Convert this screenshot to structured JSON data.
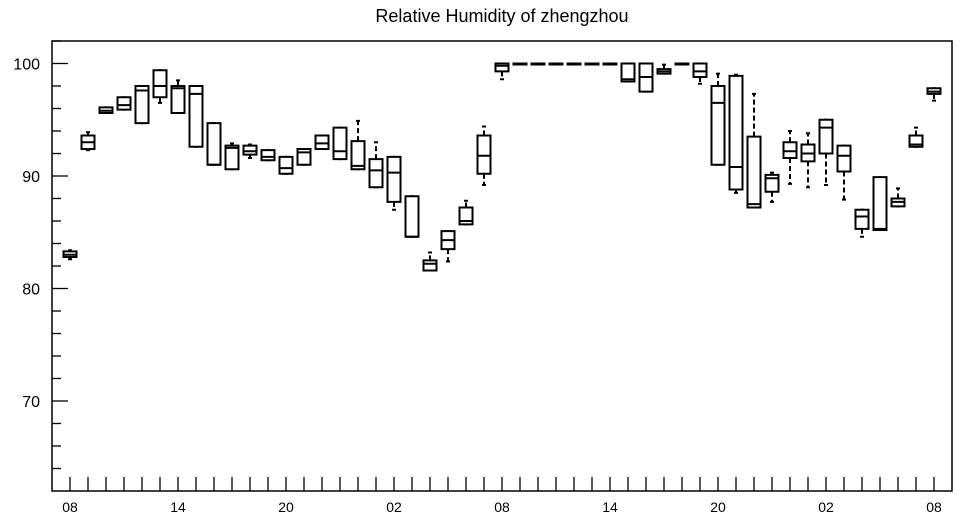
{
  "chart_data": {
    "type": "box",
    "title": "Relative Humidity of zhengzhou",
    "xlabel": "",
    "ylabel": "",
    "ylim": [
      62,
      102
    ],
    "yticks": [
      70,
      80,
      90,
      100
    ],
    "xlim": [
      0,
      50
    ],
    "x_tick_positions": [
      0,
      6,
      12,
      18,
      24,
      30,
      36,
      42,
      48
    ],
    "x_tick_labels": [
      "08",
      "14",
      "20",
      "02",
      "08",
      "14",
      "20",
      "02",
      "08"
    ],
    "grid": false,
    "series": [
      {
        "boxes": [
          {
            "x": 0,
            "q1": 82.8,
            "median": 83.0,
            "q3": 83.3,
            "whislo": 82.6,
            "whishi": 83.4
          },
          {
            "x": 1,
            "q1": 92.4,
            "median": 93.0,
            "q3": 93.6,
            "whislo": 92.3,
            "whishi": 93.9
          },
          {
            "x": 2,
            "q1": 95.6,
            "median": 95.8,
            "q3": 96.1,
            "whislo": 95.6,
            "whishi": 96.1
          },
          {
            "x": 3,
            "q1": 95.9,
            "median": 96.3,
            "q3": 97.0,
            "whislo": 95.9,
            "whishi": 97.0
          },
          {
            "x": 4,
            "q1": 94.7,
            "median": 97.6,
            "q3": 98.0,
            "whislo": 94.7,
            "whishi": 98.0
          },
          {
            "x": 5,
            "q1": 97.0,
            "median": 98.0,
            "q3": 99.4,
            "whislo": 96.5,
            "whishi": 99.4
          },
          {
            "x": 6,
            "q1": 95.6,
            "median": 97.8,
            "q3": 98.0,
            "whislo": 95.6,
            "whishi": 98.5
          },
          {
            "x": 7,
            "q1": 92.6,
            "median": 97.3,
            "q3": 98.0,
            "whislo": 92.6,
            "whishi": 98.0
          },
          {
            "x": 8,
            "q1": 91.0,
            "median": 91.0,
            "q3": 94.7,
            "whislo": 91.0,
            "whishi": 94.7
          },
          {
            "x": 9,
            "q1": 90.6,
            "median": 92.5,
            "q3": 92.7,
            "whislo": 90.6,
            "whishi": 92.9
          },
          {
            "x": 10,
            "q1": 91.9,
            "median": 92.2,
            "q3": 92.7,
            "whislo": 91.6,
            "whishi": 92.8
          },
          {
            "x": 11,
            "q1": 91.4,
            "median": 91.7,
            "q3": 92.3,
            "whislo": 91.4,
            "whishi": 92.3
          },
          {
            "x": 12,
            "q1": 90.2,
            "median": 90.7,
            "q3": 91.7,
            "whislo": 90.2,
            "whishi": 91.7
          },
          {
            "x": 13,
            "q1": 91.0,
            "median": 92.1,
            "q3": 92.4,
            "whislo": 91.0,
            "whishi": 92.4
          },
          {
            "x": 14,
            "q1": 92.4,
            "median": 92.9,
            "q3": 93.6,
            "whislo": 92.4,
            "whishi": 93.6
          },
          {
            "x": 15,
            "q1": 91.5,
            "median": 92.2,
            "q3": 94.3,
            "whislo": 91.5,
            "whishi": 94.3
          },
          {
            "x": 16,
            "q1": 90.6,
            "median": 90.9,
            "q3": 93.1,
            "whislo": 90.6,
            "whishi": 94.9
          },
          {
            "x": 17,
            "q1": 89.0,
            "median": 90.5,
            "q3": 91.5,
            "whislo": 89.0,
            "whishi": 93.0
          },
          {
            "x": 18,
            "q1": 87.7,
            "median": 90.3,
            "q3": 91.7,
            "whislo": 87.0,
            "whishi": 91.7
          },
          {
            "x": 19,
            "q1": 84.6,
            "median": 84.6,
            "q3": 88.2,
            "whislo": 84.6,
            "whishi": 88.2
          },
          {
            "x": 20,
            "q1": 81.6,
            "median": 82.2,
            "q3": 82.5,
            "whislo": 81.6,
            "whishi": 83.2
          },
          {
            "x": 21,
            "q1": 83.5,
            "median": 84.3,
            "q3": 85.1,
            "whislo": 82.4,
            "whishi": 85.1
          },
          {
            "x": 22,
            "q1": 85.7,
            "median": 86.0,
            "q3": 87.2,
            "whislo": 85.7,
            "whishi": 87.8
          },
          {
            "x": 23,
            "q1": 90.2,
            "median": 91.8,
            "q3": 93.6,
            "whislo": 89.2,
            "whishi": 94.4
          },
          {
            "x": 24,
            "q1": 99.3,
            "median": 99.8,
            "q3": 100.0,
            "whislo": 98.6,
            "whishi": 100.0
          },
          {
            "x": 25,
            "q1": 100.0,
            "median": 100.0,
            "q3": 100.0,
            "whislo": 100.0,
            "whishi": 100.0
          },
          {
            "x": 26,
            "q1": 100.0,
            "median": 100.0,
            "q3": 100.0,
            "whislo": 100.0,
            "whishi": 100.0
          },
          {
            "x": 27,
            "q1": 100.0,
            "median": 100.0,
            "q3": 100.0,
            "whislo": 100.0,
            "whishi": 100.0
          },
          {
            "x": 28,
            "q1": 100.0,
            "median": 100.0,
            "q3": 100.0,
            "whislo": 100.0,
            "whishi": 100.0
          },
          {
            "x": 29,
            "q1": 100.0,
            "median": 100.0,
            "q3": 100.0,
            "whislo": 100.0,
            "whishi": 100.0
          },
          {
            "x": 30,
            "q1": 100.0,
            "median": 100.0,
            "q3": 100.0,
            "whislo": 100.0,
            "whishi": 100.0
          },
          {
            "x": 31,
            "q1": 98.4,
            "median": 98.6,
            "q3": 100.0,
            "whislo": 98.4,
            "whishi": 100.0
          },
          {
            "x": 32,
            "q1": 97.5,
            "median": 98.8,
            "q3": 100.0,
            "whislo": 97.5,
            "whishi": 100.0
          },
          {
            "x": 33,
            "q1": 99.1,
            "median": 99.3,
            "q3": 99.5,
            "whislo": 99.1,
            "whishi": 99.9
          },
          {
            "x": 34,
            "q1": 100.0,
            "median": 100.0,
            "q3": 100.0,
            "whislo": 100.0,
            "whishi": 100.0
          },
          {
            "x": 35,
            "q1": 98.8,
            "median": 99.3,
            "q3": 100.0,
            "whislo": 98.2,
            "whishi": 100.0
          },
          {
            "x": 36,
            "q1": 91.0,
            "median": 96.5,
            "q3": 98.0,
            "whislo": 91.0,
            "whishi": 99.1
          },
          {
            "x": 37,
            "q1": 88.8,
            "median": 90.8,
            "q3": 98.9,
            "whislo": 88.5,
            "whishi": 99.0
          },
          {
            "x": 38,
            "q1": 87.2,
            "median": 87.5,
            "q3": 93.5,
            "whislo": 87.2,
            "whishi": 97.3
          },
          {
            "x": 39,
            "q1": 88.6,
            "median": 89.8,
            "q3": 90.1,
            "whislo": 87.7,
            "whishi": 90.3
          },
          {
            "x": 40,
            "q1": 91.6,
            "median": 92.2,
            "q3": 93.0,
            "whislo": 89.3,
            "whishi": 94.0
          },
          {
            "x": 41,
            "q1": 91.3,
            "median": 92.0,
            "q3": 92.8,
            "whislo": 89.0,
            "whishi": 93.8
          },
          {
            "x": 42,
            "q1": 92.0,
            "median": 94.3,
            "q3": 95.0,
            "whislo": 89.2,
            "whishi": 95.0
          },
          {
            "x": 43,
            "q1": 90.4,
            "median": 91.8,
            "q3": 92.7,
            "whislo": 87.9,
            "whishi": 92.7
          },
          {
            "x": 44,
            "q1": 85.3,
            "median": 86.4,
            "q3": 87.0,
            "whislo": 84.6,
            "whishi": 87.0
          },
          {
            "x": 45,
            "q1": 85.2,
            "median": 85.3,
            "q3": 89.9,
            "whislo": 85.2,
            "whishi": 89.9
          },
          {
            "x": 46,
            "q1": 87.3,
            "median": 87.7,
            "q3": 88.0,
            "whislo": 87.3,
            "whishi": 88.9
          },
          {
            "x": 47,
            "q1": 92.6,
            "median": 92.8,
            "q3": 93.6,
            "whislo": 92.6,
            "whishi": 94.3
          },
          {
            "x": 48,
            "q1": 97.3,
            "median": 97.5,
            "q3": 97.8,
            "whislo": 96.7,
            "whishi": 97.8
          }
        ]
      }
    ]
  }
}
